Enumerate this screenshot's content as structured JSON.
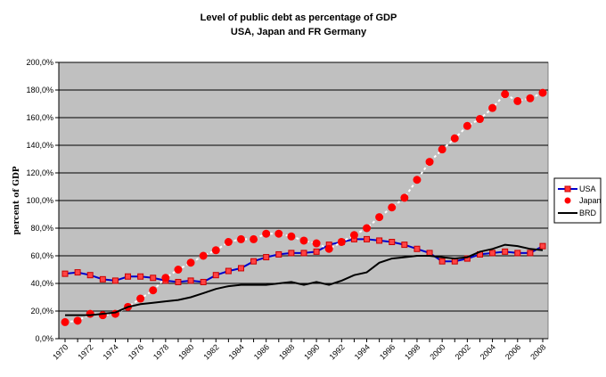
{
  "chart_data": {
    "type": "line",
    "title": "Level of public debt as percentage of GDP",
    "subtitle": "USA, Japan and FR Germany",
    "xlabel": "",
    "ylabel": "percent of GDP",
    "ylim": [
      0,
      200
    ],
    "yticks": [
      "0,0%",
      "20,0%",
      "40,0%",
      "60,0%",
      "80,0%",
      "100,0%",
      "120,0%",
      "140,0%",
      "160,0%",
      "180,0%",
      "200,0%"
    ],
    "ytick_values": [
      0,
      20,
      40,
      60,
      80,
      100,
      120,
      140,
      160,
      180,
      200
    ],
    "x": [
      1970,
      1971,
      1972,
      1973,
      1974,
      1975,
      1976,
      1977,
      1978,
      1979,
      1980,
      1981,
      1982,
      1983,
      1984,
      1985,
      1986,
      1987,
      1988,
      1989,
      1990,
      1991,
      1992,
      1993,
      1994,
      1995,
      1996,
      1997,
      1998,
      1999,
      2000,
      2001,
      2002,
      2003,
      2004,
      2005,
      2006,
      2007,
      2008
    ],
    "xtick_labels": [
      "1970",
      "1972",
      "1974",
      "1976",
      "1978",
      "1980",
      "1982",
      "1984",
      "1986",
      "1988",
      "1990",
      "1992",
      "1994",
      "1996",
      "1998",
      "2000",
      "2002",
      "2004",
      "2006",
      "2008"
    ],
    "grid": "horizontal",
    "legend_position": "right",
    "series": [
      {
        "name": "USA",
        "style": "line-square-markers",
        "line_color": "#0000cc",
        "marker_color": "#ff0000",
        "values": [
          47,
          48,
          46,
          43,
          42,
          45,
          45,
          44,
          42,
          41,
          42,
          41,
          46,
          49,
          51,
          56,
          59,
          61,
          62,
          62,
          63,
          68,
          70,
          72,
          72,
          71,
          70,
          68,
          65,
          62,
          56,
          56,
          58,
          61,
          62,
          63,
          62,
          62,
          67
        ]
      },
      {
        "name": "Japan",
        "style": "dots-only",
        "line_color": "#ffffff",
        "marker_color": "#ff0000",
        "values": [
          12,
          13,
          18,
          17,
          18,
          23,
          29,
          35,
          44,
          50,
          55,
          60,
          64,
          70,
          72,
          72,
          76,
          76,
          74,
          71,
          69,
          65,
          70,
          75,
          80,
          88,
          95,
          102,
          115,
          128,
          137,
          145,
          154,
          159,
          167,
          177,
          172,
          174,
          178
        ]
      },
      {
        "name": "BRD",
        "style": "line",
        "line_color": "#000000",
        "values": [
          17,
          17,
          17,
          18,
          19,
          23,
          25,
          26,
          27,
          28,
          30,
          33,
          36,
          38,
          39,
          39,
          39,
          40,
          41,
          39,
          41,
          39,
          42,
          46,
          48,
          55,
          58,
          59,
          60,
          60,
          59,
          58,
          59,
          63,
          65,
          68,
          67,
          65,
          64
        ]
      }
    ]
  },
  "colors": {
    "plot_background": "#c0c0c0",
    "gridline": "#000000"
  }
}
